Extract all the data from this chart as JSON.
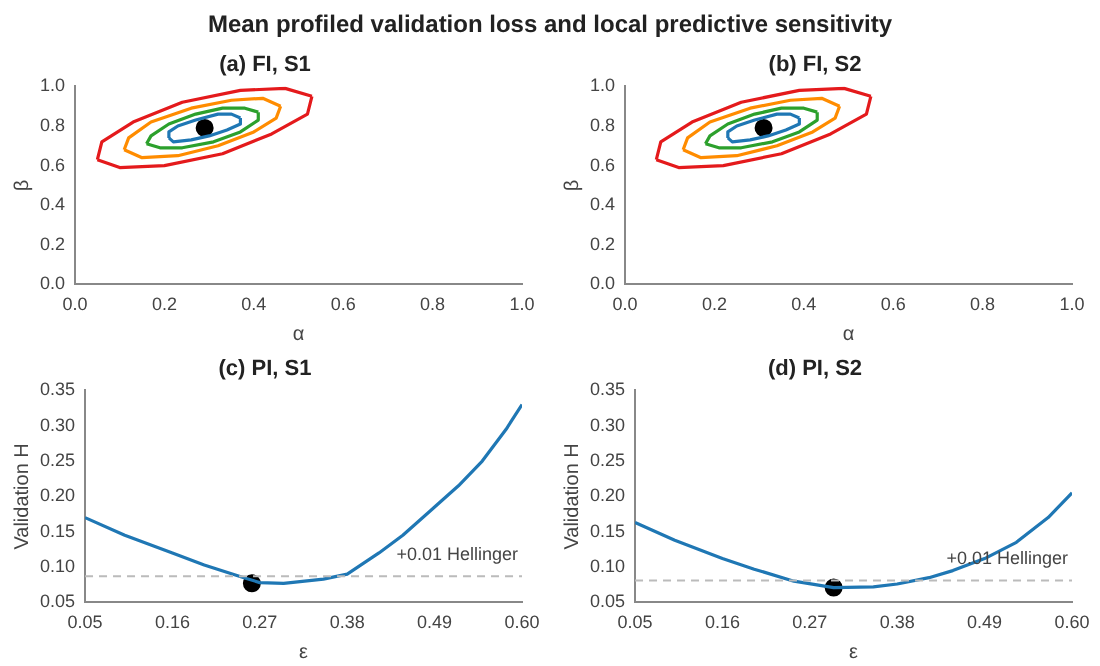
{
  "chart_data": [
    {
      "type": "line",
      "title": "(a) FI, S1",
      "xlabel": "α",
      "ylabel": "β",
      "annotations": [
        "Mean profiled validation loss and local predictive sensitivity"
      ],
      "xlim": [
        0,
        1
      ],
      "ylim": [
        0,
        1
      ],
      "xticks": [
        {
          "value": 0,
          "label": "0.0"
        },
        0.2,
        0.4,
        0.6,
        0.8,
        {
          "value": 1,
          "label": "1.0"
        }
      ],
      "yticks": [
        {
          "value": 0,
          "label": "0.0"
        },
        0.2,
        0.4,
        0.6,
        0.8,
        {
          "value": 1,
          "label": "1.0"
        }
      ],
      "grid": false,
      "legend": false,
      "series": [
        {
          "color": "#e41a1c",
          "x": [
            0.05,
            0.06,
            0.13,
            0.24,
            0.37,
            0.47,
            0.53
          ],
          "values": [
            0.63,
            0.72,
            0.82,
            0.92,
            0.98,
            0.99,
            0.95
          ]
        },
        {
          "color": "#e41a1c",
          "x": [
            0.05,
            0.1,
            0.2,
            0.33,
            0.44,
            0.52,
            0.53
          ],
          "values": [
            0.63,
            0.59,
            0.6,
            0.66,
            0.76,
            0.86,
            0.95
          ]
        },
        {
          "color": "#ff8c00",
          "x": [
            0.11,
            0.12,
            0.17,
            0.26,
            0.35,
            0.42,
            0.46
          ],
          "values": [
            0.68,
            0.74,
            0.82,
            0.89,
            0.93,
            0.94,
            0.9
          ]
        },
        {
          "color": "#ff8c00",
          "x": [
            0.11,
            0.15,
            0.23,
            0.32,
            0.4,
            0.45,
            0.46
          ],
          "values": [
            0.68,
            0.64,
            0.65,
            0.7,
            0.77,
            0.84,
            0.9
          ]
        },
        {
          "color": "#2ca02c",
          "x": [
            0.16,
            0.17,
            0.21,
            0.27,
            0.33,
            0.38,
            0.41
          ],
          "values": [
            0.71,
            0.75,
            0.81,
            0.86,
            0.89,
            0.89,
            0.87
          ]
        },
        {
          "color": "#2ca02c",
          "x": [
            0.16,
            0.19,
            0.24,
            0.31,
            0.37,
            0.41,
            0.41
          ],
          "values": [
            0.71,
            0.69,
            0.69,
            0.72,
            0.77,
            0.83,
            0.87
          ]
        },
        {
          "color": "#1f77b4",
          "x": [
            0.21,
            0.21,
            0.23,
            0.27,
            0.32,
            0.35,
            0.37
          ],
          "values": [
            0.74,
            0.77,
            0.8,
            0.83,
            0.86,
            0.86,
            0.84
          ]
        },
        {
          "color": "#1f77b4",
          "x": [
            0.21,
            0.22,
            0.26,
            0.3,
            0.34,
            0.37,
            0.37
          ],
          "values": [
            0.74,
            0.72,
            0.73,
            0.75,
            0.78,
            0.81,
            0.84
          ]
        },
        {
          "type": "scatter",
          "marker": "circle",
          "color": "#000000",
          "x": [
            0.29
          ],
          "values": [
            0.79
          ]
        }
      ]
    },
    {
      "type": "line",
      "title": "(b) FI, S2",
      "xlabel": "α",
      "ylabel": "β",
      "xlim": [
        0,
        1
      ],
      "ylim": [
        0,
        1
      ],
      "xticks": [
        {
          "value": 0,
          "label": "0.0"
        },
        0.2,
        0.4,
        0.6,
        0.8,
        {
          "value": 1,
          "label": "1.0"
        }
      ],
      "yticks": [
        {
          "value": 0,
          "label": "0.0"
        },
        0.2,
        0.4,
        0.6,
        0.8,
        {
          "value": 1,
          "label": "1.0"
        }
      ],
      "grid": false,
      "legend": false,
      "series": [
        {
          "color": "#e41a1c",
          "x": [
            0.07,
            0.08,
            0.15,
            0.26,
            0.39,
            0.49,
            0.55
          ],
          "values": [
            0.63,
            0.72,
            0.82,
            0.92,
            0.98,
            0.99,
            0.95
          ]
        },
        {
          "color": "#e41a1c",
          "x": [
            0.07,
            0.12,
            0.22,
            0.35,
            0.46,
            0.54,
            0.55
          ],
          "values": [
            0.63,
            0.59,
            0.6,
            0.66,
            0.76,
            0.86,
            0.95
          ]
        },
        {
          "color": "#ff8c00",
          "x": [
            0.13,
            0.14,
            0.19,
            0.28,
            0.37,
            0.44,
            0.48
          ],
          "values": [
            0.68,
            0.74,
            0.82,
            0.89,
            0.93,
            0.94,
            0.9
          ]
        },
        {
          "color": "#ff8c00",
          "x": [
            0.13,
            0.17,
            0.25,
            0.34,
            0.42,
            0.47,
            0.48
          ],
          "values": [
            0.68,
            0.64,
            0.65,
            0.7,
            0.77,
            0.84,
            0.9
          ]
        },
        {
          "color": "#2ca02c",
          "x": [
            0.18,
            0.19,
            0.23,
            0.29,
            0.35,
            0.4,
            0.43
          ],
          "values": [
            0.71,
            0.75,
            0.81,
            0.86,
            0.89,
            0.89,
            0.87
          ]
        },
        {
          "color": "#2ca02c",
          "x": [
            0.18,
            0.21,
            0.26,
            0.33,
            0.39,
            0.43,
            0.43
          ],
          "values": [
            0.71,
            0.69,
            0.69,
            0.72,
            0.77,
            0.83,
            0.87
          ]
        },
        {
          "color": "#1f77b4",
          "x": [
            0.23,
            0.23,
            0.25,
            0.29,
            0.34,
            0.37,
            0.39
          ],
          "values": [
            0.74,
            0.77,
            0.8,
            0.83,
            0.86,
            0.86,
            0.84
          ]
        },
        {
          "color": "#1f77b4",
          "x": [
            0.23,
            0.24,
            0.28,
            0.32,
            0.36,
            0.39,
            0.39
          ],
          "values": [
            0.74,
            0.72,
            0.73,
            0.75,
            0.78,
            0.81,
            0.84
          ]
        },
        {
          "type": "scatter",
          "marker": "circle",
          "color": "#000000",
          "x": [
            0.31
          ],
          "values": [
            0.79
          ]
        }
      ]
    },
    {
      "type": "line",
      "title": "(c) PI, S1",
      "xlabel": "ε",
      "ylabel": "Validation H",
      "xlim": [
        0.05,
        0.6
      ],
      "ylim": [
        0.05,
        0.35
      ],
      "xticks": [
        0.05,
        0.16,
        0.27,
        0.38,
        0.49,
        {
          "value": 0.6,
          "label": "0.60"
        }
      ],
      "yticks": [
        0.05,
        {
          "value": 0.1,
          "label": "0.10"
        },
        0.15,
        {
          "value": 0.2,
          "label": "0.20"
        },
        0.25,
        {
          "value": 0.3,
          "label": "0.30"
        },
        0.35
      ],
      "grid": false,
      "legend": false,
      "ref_lines": [
        {
          "axis": "y",
          "value": 0.087,
          "label": "+0.01 Hellinger",
          "color": "#bbbbbb",
          "line_style": "dashed"
        }
      ],
      "series": [
        {
          "color": "#1f77b4",
          "x": [
            0.05,
            0.1,
            0.16,
            0.2,
            0.25,
            0.27,
            0.3,
            0.35,
            0.38,
            0.42,
            0.45,
            0.49,
            0.52,
            0.55,
            0.58,
            0.6
          ],
          "values": [
            0.17,
            0.145,
            0.12,
            0.103,
            0.085,
            0.078,
            0.077,
            0.083,
            0.09,
            0.12,
            0.145,
            0.185,
            0.215,
            0.25,
            0.295,
            0.33
          ]
        },
        {
          "type": "scatter",
          "marker": "circle",
          "color": "#000000",
          "x": [
            0.26
          ],
          "values": [
            0.077
          ]
        }
      ]
    },
    {
      "type": "line",
      "title": "(d) PI, S2",
      "xlabel": "ε",
      "ylabel": "Validation H",
      "xlim": [
        0.05,
        0.6
      ],
      "ylim": [
        0.05,
        0.35
      ],
      "xticks": [
        0.05,
        0.16,
        0.27,
        0.38,
        0.49,
        {
          "value": 0.6,
          "label": "0.60"
        }
      ],
      "yticks": [
        0.05,
        {
          "value": 0.1,
          "label": "0.10"
        },
        0.15,
        {
          "value": 0.2,
          "label": "0.20"
        },
        0.25,
        {
          "value": 0.3,
          "label": "0.30"
        },
        0.35
      ],
      "grid": false,
      "legend": false,
      "ref_lines": [
        {
          "axis": "y",
          "value": 0.081,
          "label": "+0.01 Hellinger",
          "color": "#bbbbbb",
          "line_style": "dashed"
        }
      ],
      "series": [
        {
          "color": "#1f77b4",
          "x": [
            0.05,
            0.1,
            0.16,
            0.2,
            0.25,
            0.3,
            0.35,
            0.38,
            0.42,
            0.45,
            0.49,
            0.53,
            0.57,
            0.6
          ],
          "values": [
            0.163,
            0.138,
            0.112,
            0.097,
            0.08,
            0.071,
            0.072,
            0.076,
            0.085,
            0.095,
            0.112,
            0.135,
            0.17,
            0.205
          ]
        },
        {
          "type": "scatter",
          "marker": "circle",
          "color": "#000000",
          "x": [
            0.3
          ],
          "values": [
            0.071
          ]
        }
      ]
    }
  ]
}
